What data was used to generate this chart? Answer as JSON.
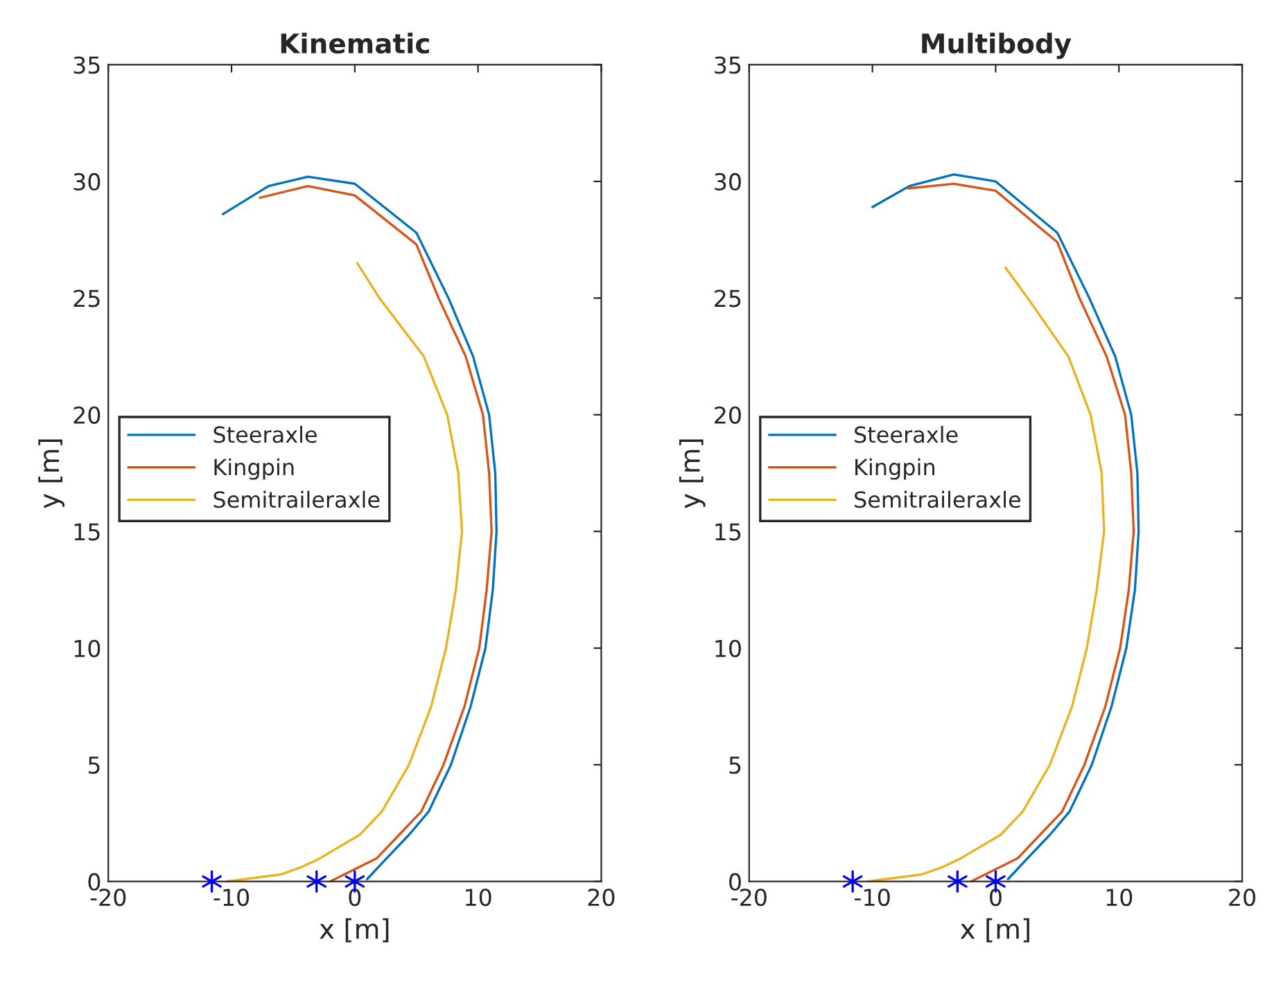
{
  "chart_data": [
    {
      "type": "line",
      "title": "Kinematic",
      "xlabel": "x [m]",
      "ylabel": "y [m]",
      "xlim": [
        -20,
        20
      ],
      "ylim": [
        0,
        35
      ],
      "xticks": [
        -20,
        -10,
        0,
        10,
        20
      ],
      "yticks": [
        0,
        5,
        10,
        15,
        20,
        25,
        30,
        35
      ],
      "grid": false,
      "legend": "left",
      "series": [
        {
          "name": "Steeraxle",
          "color": "#0072bd",
          "x": [
            1,
            2.6,
            4.4,
            6,
            7.8,
            9.4,
            10.6,
            11.2,
            11.5,
            11.4,
            10.9,
            9.6,
            7.6,
            5,
            0,
            -3.8,
            -7,
            -10.7
          ],
          "values": [
            0.1,
            1,
            2,
            3,
            5,
            7.5,
            10,
            12.5,
            15,
            17.5,
            20,
            22.5,
            25,
            27.8,
            29.9,
            30.2,
            29.8,
            28.6
          ]
        },
        {
          "name": "Kingpin",
          "color": "#d95319",
          "x": [
            -2,
            1.8,
            3.6,
            5.4,
            7.2,
            8.9,
            10.1,
            10.7,
            11.1,
            10.9,
            10.4,
            9,
            6.8,
            5,
            0,
            -3.8,
            -7.7
          ],
          "values": [
            0,
            1,
            2,
            3,
            5,
            7.5,
            10,
            12.5,
            15,
            17.5,
            20,
            22.5,
            25,
            27.3,
            29.4,
            29.8,
            29.3
          ]
        },
        {
          "name": "Semitraileraxle",
          "color": "#edb120",
          "x": [
            -10.4,
            -6,
            -4.4,
            -2.8,
            0.4,
            2.2,
            4.4,
            6.2,
            7.4,
            8.2,
            8.7,
            8.4,
            7.5,
            5.6,
            2,
            0.2
          ],
          "values": [
            0,
            0.3,
            0.6,
            1,
            2,
            3,
            5,
            7.5,
            10,
            12.5,
            15,
            17.5,
            20,
            22.5,
            25,
            26.5
          ]
        },
        {
          "type": "scatter",
          "color": "#0000ff",
          "marker": "cross",
          "x": [
            -11.6,
            -3.1,
            0
          ],
          "values": [
            0,
            0,
            0
          ]
        }
      ]
    },
    {
      "type": "line",
      "title": "Multibody",
      "xlabel": "x [m]",
      "ylabel": "y [m]",
      "xlim": [
        -20,
        20
      ],
      "ylim": [
        0,
        35
      ],
      "xticks": [
        -20,
        -10,
        0,
        10,
        20
      ],
      "yticks": [
        0,
        5,
        10,
        15,
        20,
        25,
        30,
        35
      ],
      "grid": false,
      "legend": "left",
      "series": [
        {
          "name": "Steeraxle",
          "color": "#0072bd",
          "x": [
            1,
            2.6,
            4.4,
            6,
            7.8,
            9.4,
            10.6,
            11.3,
            11.6,
            11.5,
            11,
            9.7,
            7.6,
            5,
            0,
            -3.4,
            -7,
            -10
          ],
          "values": [
            0.1,
            1,
            2,
            3,
            5,
            7.5,
            10,
            12.5,
            15,
            17.5,
            20,
            22.5,
            25,
            27.8,
            30,
            30.3,
            29.8,
            28.9
          ]
        },
        {
          "name": "Kingpin",
          "color": "#d95319",
          "x": [
            -2,
            1.8,
            3.6,
            5.4,
            7.2,
            8.9,
            10.1,
            10.8,
            11.2,
            11,
            10.5,
            9,
            6.8,
            5,
            0,
            -3.4,
            -7.1
          ],
          "values": [
            0,
            1,
            2,
            3,
            5,
            7.5,
            10,
            12.5,
            15,
            17.5,
            20,
            22.5,
            25,
            27.4,
            29.6,
            29.9,
            29.7
          ]
        },
        {
          "name": "Semitraileraxle",
          "color": "#edb120",
          "x": [
            -10.4,
            -6,
            -4.4,
            -2.8,
            0.4,
            2.2,
            4.4,
            6.2,
            7.4,
            8.2,
            8.8,
            8.6,
            7.7,
            5.9,
            2.6,
            0.8
          ],
          "values": [
            0,
            0.3,
            0.6,
            1,
            2,
            3,
            5,
            7.5,
            10,
            12.5,
            15,
            17.5,
            20,
            22.5,
            25,
            26.3
          ]
        },
        {
          "type": "scatter",
          "color": "#0000ff",
          "marker": "cross",
          "x": [
            -11.6,
            -3.1,
            0
          ],
          "values": [
            0,
            0,
            0
          ]
        }
      ]
    }
  ]
}
